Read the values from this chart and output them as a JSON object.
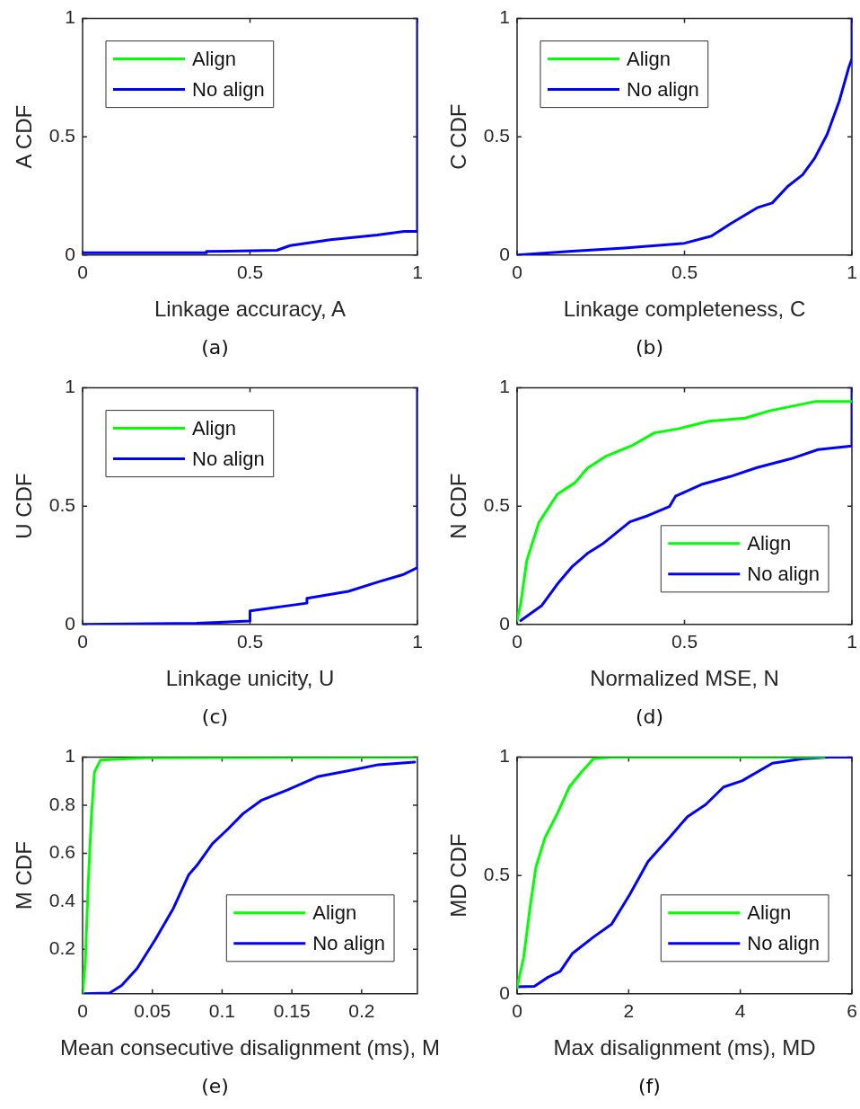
{
  "chart_data": [
    {
      "type": "line",
      "xlabel": "Linkage accuracy, A",
      "ylabel": "A CDF",
      "annotations": [
        "(a)"
      ],
      "xlim": [
        0,
        1
      ],
      "xticks": [
        0,
        0.5,
        1
      ],
      "ylim": [
        0,
        1
      ],
      "yticks": [
        0,
        0.5,
        1
      ],
      "grid": false,
      "legend": "top left",
      "marker": "none",
      "line_style": "solid",
      "series": [
        {
          "name": "Align",
          "color": "#00ff00"
        },
        {
          "name": "No align",
          "color": "#0000ff",
          "x": [
            0,
            0.37,
            0.37,
            0.58,
            0.62,
            0.74,
            0.88,
            0.96,
            1,
            1
          ],
          "values": [
            0.01,
            0.01,
            0.015,
            0.02,
            0.04,
            0.065,
            0.085,
            0.1,
            0.1,
            1
          ]
        }
      ]
    },
    {
      "type": "line",
      "xlabel": "Linkage completeness, C",
      "ylabel": "C CDF",
      "annotations": [
        "(b)"
      ],
      "xlim": [
        0,
        1
      ],
      "xticks": [
        0,
        0.5,
        1
      ],
      "ylim": [
        0,
        1
      ],
      "yticks": [
        0,
        0.5,
        1
      ],
      "grid": false,
      "legend": "top left",
      "marker": "none",
      "line_style": "solid",
      "series": [
        {
          "name": "Align",
          "color": "#00ff00"
        },
        {
          "name": "No align",
          "color": "#0000ff",
          "x": [
            0,
            0.165,
            0.32,
            0.5,
            0.58,
            0.635,
            0.717,
            0.762,
            0.808,
            0.853,
            0.889,
            0.926,
            0.962,
            0.99,
            1,
            1
          ],
          "values": [
            0,
            0.016,
            0.03,
            0.05,
            0.08,
            0.13,
            0.2,
            0.22,
            0.29,
            0.34,
            0.41,
            0.51,
            0.65,
            0.79,
            0.83,
            1
          ]
        }
      ]
    },
    {
      "type": "line",
      "xlabel": "Linkage unicity, U",
      "ylabel": "U CDF",
      "annotations": [
        "(c)"
      ],
      "xlim": [
        0,
        1
      ],
      "xticks": [
        0,
        0.5,
        1
      ],
      "ylim": [
        0,
        1
      ],
      "yticks": [
        0,
        0.5,
        1
      ],
      "grid": false,
      "legend": "top left",
      "marker": "none",
      "line_style": "solid",
      "series": [
        {
          "name": "Align",
          "color": "#00ff00"
        },
        {
          "name": "No align",
          "color": "#0000ff",
          "x": [
            0,
            0.34,
            0.5,
            0.5,
            0.67,
            0.67,
            0.794,
            0.884,
            0.956,
            1,
            1
          ],
          "values": [
            0,
            0.005,
            0.014,
            0.057,
            0.09,
            0.11,
            0.14,
            0.18,
            0.21,
            0.24,
            1
          ]
        }
      ]
    },
    {
      "type": "line",
      "xlabel": "Normalized MSE, N",
      "ylabel": "N CDF",
      "annotations": [
        "(d)"
      ],
      "xlim": [
        0,
        1
      ],
      "xticks": [
        0,
        0.5,
        1
      ],
      "ylim": [
        0,
        1
      ],
      "yticks": [
        0,
        0.5,
        1
      ],
      "grid": false,
      "legend": "bottom right",
      "marker": "none",
      "line_style": "solid",
      "series": [
        {
          "name": "Align",
          "color": "#00ff00",
          "x": [
            0,
            0.011,
            0.029,
            0.065,
            0.12,
            0.174,
            0.21,
            0.264,
            0.346,
            0.41,
            0.482,
            0.572,
            0.681,
            0.754,
            0.889,
            1
          ],
          "values": [
            0.016,
            0.09,
            0.27,
            0.43,
            0.55,
            0.6,
            0.66,
            0.71,
            0.758,
            0.81,
            0.827,
            0.859,
            0.872,
            0.903,
            0.942,
            0.942
          ]
        },
        {
          "name": "No align",
          "color": "#0000ff",
          "x": [
            0.011,
            0.074,
            0.12,
            0.165,
            0.21,
            0.255,
            0.337,
            0.391,
            0.455,
            0.473,
            0.554,
            0.636,
            0.717,
            0.817,
            0.899,
            1,
            1
          ],
          "values": [
            0.016,
            0.08,
            0.17,
            0.245,
            0.3,
            0.34,
            0.434,
            0.46,
            0.498,
            0.542,
            0.593,
            0.625,
            0.663,
            0.7,
            0.739,
            0.754,
            1
          ]
        }
      ]
    },
    {
      "type": "line",
      "xlabel": "Mean consecutive disalignment (ms), M",
      "ylabel": "M CDF",
      "annotations": [
        "(e)"
      ],
      "xlim": [
        0,
        0.24
      ],
      "xticks": [
        0,
        0.05,
        0.1,
        0.15,
        0.2
      ],
      "ylim": [
        0.015,
        1
      ],
      "yticks": [
        0.2,
        0.4,
        0.6,
        0.8,
        1
      ],
      "grid": false,
      "legend": "bottom right",
      "marker": "none",
      "line_style": "solid",
      "series": [
        {
          "name": "Align",
          "color": "#00ff00",
          "x": [
            0,
            0.0019,
            0.0041,
            0.0063,
            0.0085,
            0.0128,
            0.045,
            0.24
          ],
          "values": [
            0.015,
            0.145,
            0.48,
            0.752,
            0.938,
            0.988,
            0.998,
            1
          ]
        },
        {
          "name": "No align",
          "color": "#0000ff",
          "x": [
            0,
            0.0193,
            0.028,
            0.039,
            0.052,
            0.065,
            0.076,
            0.082,
            0.093,
            0.104,
            0.115,
            0.128,
            0.147,
            0.169,
            0.191,
            0.212,
            0.238
          ],
          "values": [
            0.015,
            0.018,
            0.05,
            0.12,
            0.24,
            0.37,
            0.51,
            0.55,
            0.64,
            0.7,
            0.765,
            0.82,
            0.864,
            0.92,
            0.944,
            0.969,
            0.98
          ]
        }
      ]
    },
    {
      "type": "line",
      "xlabel": "Max disalignment (ms), MD",
      "ylabel": "MD CDF",
      "annotations": [
        "(f)"
      ],
      "xlim": [
        0,
        6
      ],
      "xticks": [
        0,
        2,
        4,
        6
      ],
      "ylim": [
        0,
        1
      ],
      "yticks": [
        0,
        0.5,
        1
      ],
      "grid": false,
      "legend": "bottom right",
      "marker": "none",
      "line_style": "solid",
      "series": [
        {
          "name": "Align",
          "color": "#00ff00",
          "x": [
            0,
            0.12,
            0.228,
            0.337,
            0.5,
            0.717,
            0.935,
            1.152,
            1.37,
            1.696,
            5.5
          ],
          "values": [
            0.026,
            0.157,
            0.358,
            0.535,
            0.66,
            0.76,
            0.874,
            0.937,
            0.994,
            1,
            1
          ]
        },
        {
          "name": "No align",
          "color": "#0000ff",
          "x": [
            0,
            0.31,
            0.554,
            0.772,
            0.99,
            1.37,
            1.696,
            2.02,
            2.348,
            2.73,
            3.054,
            3.38,
            3.7,
            4.03,
            4.576,
            5.12,
            5.6,
            6
          ],
          "values": [
            0.03,
            0.032,
            0.07,
            0.095,
            0.17,
            0.24,
            0.295,
            0.42,
            0.56,
            0.66,
            0.749,
            0.8,
            0.874,
            0.9,
            0.975,
            0.994,
            1,
            1
          ]
        }
      ]
    }
  ]
}
